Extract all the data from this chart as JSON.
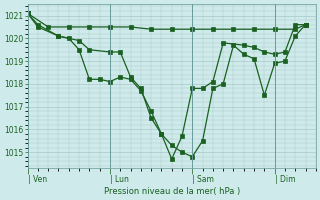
{
  "bg_color": "#ceeaea",
  "grid_color": "#aac8c8",
  "line_color": "#1a6020",
  "ylim": [
    1014.3,
    1021.5
  ],
  "yticks": [
    1015,
    1016,
    1017,
    1018,
    1019,
    1020,
    1021
  ],
  "xlabel": "Pression niveau de la mer( hPa )",
  "day_positions": [
    0.0,
    4.0,
    8.0,
    12.0
  ],
  "day_labels": [
    "| Ven",
    "| Lun",
    "| Sam",
    "| Dim"
  ],
  "xlim": [
    0,
    14.0
  ],
  "series1_x": [
    0.0,
    0.5,
    1.5,
    2.5,
    3.0,
    4.0,
    4.5,
    5.0,
    5.5,
    6.0,
    6.5,
    7.0,
    7.5,
    8.0,
    8.5,
    9.0,
    9.5,
    10.5,
    11.0,
    11.5,
    12.0,
    12.5,
    13.0,
    13.5
  ],
  "series1_y": [
    1021.1,
    1020.6,
    1020.1,
    1019.9,
    1019.5,
    1019.4,
    1019.4,
    1018.3,
    1017.8,
    1016.5,
    1015.8,
    1014.7,
    1015.7,
    1017.8,
    1017.8,
    1018.1,
    1019.8,
    1019.7,
    1019.6,
    1019.4,
    1019.3,
    1019.4,
    1020.6,
    1020.6
  ],
  "series2_x": [
    0.0,
    1.0,
    2.0,
    3.0,
    4.0,
    5.0,
    6.0,
    7.0,
    8.0,
    9.0,
    10.0,
    11.0,
    12.0,
    13.0,
    13.5
  ],
  "series2_y": [
    1021.1,
    1020.5,
    1020.5,
    1020.5,
    1020.5,
    1020.5,
    1020.4,
    1020.4,
    1020.4,
    1020.4,
    1020.4,
    1020.4,
    1020.4,
    1020.4,
    1020.6
  ],
  "series3_x": [
    0.0,
    0.5,
    1.5,
    2.0,
    2.5,
    3.0,
    3.5,
    4.0,
    4.5,
    5.0,
    5.5,
    6.0,
    6.5,
    7.0,
    7.5,
    8.0,
    8.5,
    9.0,
    9.5,
    10.0,
    10.5,
    11.0,
    11.5,
    12.0,
    12.5,
    13.0,
    13.5
  ],
  "series3_y": [
    1021.1,
    1020.5,
    1020.1,
    1020.0,
    1019.5,
    1018.2,
    1018.2,
    1018.1,
    1018.3,
    1018.2,
    1017.7,
    1016.8,
    1015.8,
    1015.3,
    1015.0,
    1014.8,
    1015.5,
    1017.8,
    1018.0,
    1019.7,
    1019.3,
    1019.1,
    1017.5,
    1018.9,
    1019.0,
    1020.1,
    1020.6
  ]
}
